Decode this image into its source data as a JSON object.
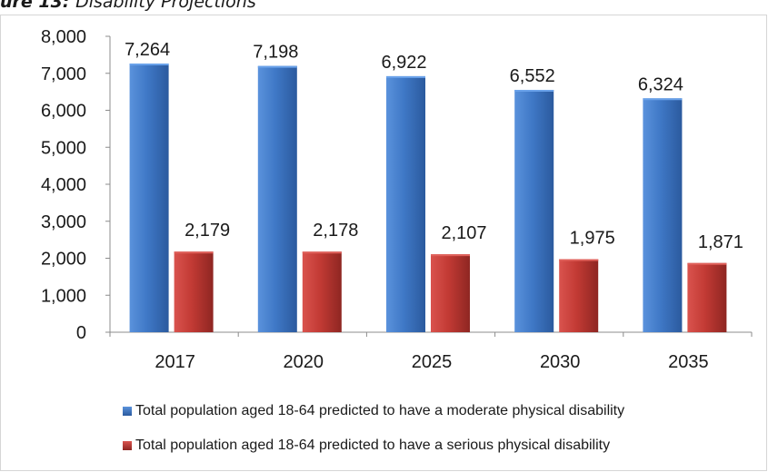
{
  "caption": {
    "prefix": "ure 13:",
    "text": "Disability Projections"
  },
  "colors": {
    "series_0": "#3f78c6",
    "series_1": "#c23a34"
  },
  "chart_data": {
    "type": "bar",
    "categories": [
      "2017",
      "2020",
      "2025",
      "2030",
      "2035"
    ],
    "series": [
      {
        "name": "Total population aged 18-64 predicted to have a moderate physical disability",
        "values": [
          7264,
          7198,
          6922,
          6552,
          6324
        ],
        "labels": [
          "7,264",
          "7,198",
          "6,922",
          "6,552",
          "6,324"
        ]
      },
      {
        "name": "Total population aged 18-64 predicted to have a serious physical disability",
        "values": [
          2179,
          2178,
          2107,
          1975,
          1871
        ],
        "labels": [
          "2,179",
          "2,178",
          "2,107",
          "1,975",
          "1,871"
        ]
      }
    ],
    "yticks": [
      "0",
      "1,000",
      "2,000",
      "3,000",
      "4,000",
      "5,000",
      "6,000",
      "7,000",
      "8,000"
    ],
    "ylim": [
      0,
      8000
    ],
    "legend_position": "bottom",
    "grid": false
  }
}
